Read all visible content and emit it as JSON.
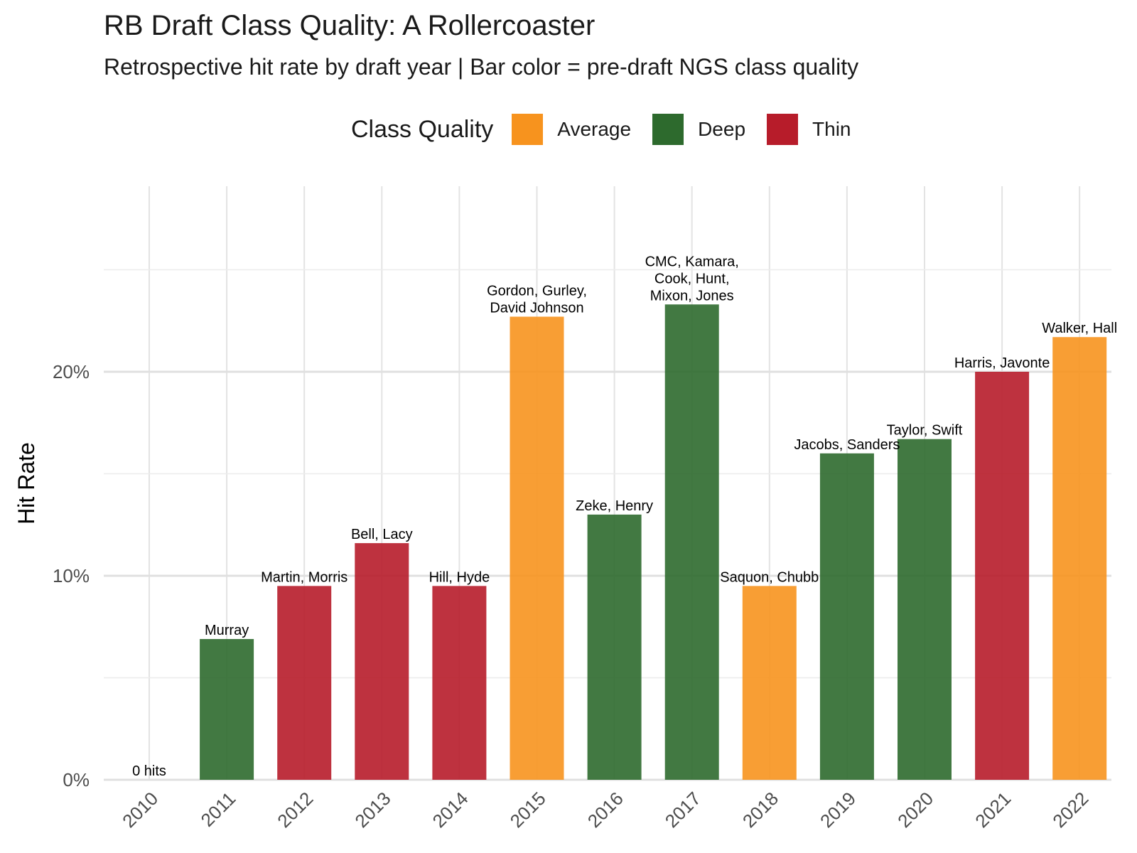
{
  "chart_data": {
    "type": "bar",
    "title": "RB Draft Class Quality: A Rollercoaster",
    "subtitle": "Retrospective hit rate by draft year | Bar color = pre-draft NGS class quality",
    "xlabel": "",
    "ylabel": "Hit Rate",
    "ylim": [
      0,
      0.28
    ],
    "yticks": [
      0,
      0.1,
      0.2
    ],
    "ytick_labels": [
      "0%",
      "10%",
      "20%"
    ],
    "grid": true,
    "legend": {
      "title": "Class Quality",
      "placement": "top",
      "entries": [
        {
          "label": "Average",
          "color": "#F7931E"
        },
        {
          "label": "Deep",
          "color": "#2D6A2D"
        },
        {
          "label": "Thin",
          "color": "#B71C2A"
        }
      ]
    },
    "categories": [
      "2010",
      "2011",
      "2012",
      "2013",
      "2014",
      "2015",
      "2016",
      "2017",
      "2018",
      "2019",
      "2020",
      "2021",
      "2022"
    ],
    "values": [
      0,
      0.069,
      0.095,
      0.116,
      0.095,
      0.227,
      0.13,
      0.233,
      0.095,
      0.16,
      0.167,
      0.2,
      0.217
    ],
    "quality": [
      "Deep",
      "Deep",
      "Thin",
      "Thin",
      "Thin",
      "Average",
      "Deep",
      "Deep",
      "Average",
      "Deep",
      "Deep",
      "Thin",
      "Average"
    ],
    "labels": [
      [
        "0 hits"
      ],
      [
        "Murray"
      ],
      [
        "Martin, Morris"
      ],
      [
        "Bell, Lacy"
      ],
      [
        "Hill, Hyde"
      ],
      [
        "Gordon, Gurley,",
        "David Johnson"
      ],
      [
        "Zeke, Henry"
      ],
      [
        "CMC, Kamara,",
        "Cook, Hunt,",
        "Mixon, Jones"
      ],
      [
        "Saquon, Chubb"
      ],
      [
        "Jacobs, Sanders"
      ],
      [
        "Taylor, Swift"
      ],
      [
        "Harris, Javonte"
      ],
      [
        "Walker, Hall"
      ]
    ]
  }
}
